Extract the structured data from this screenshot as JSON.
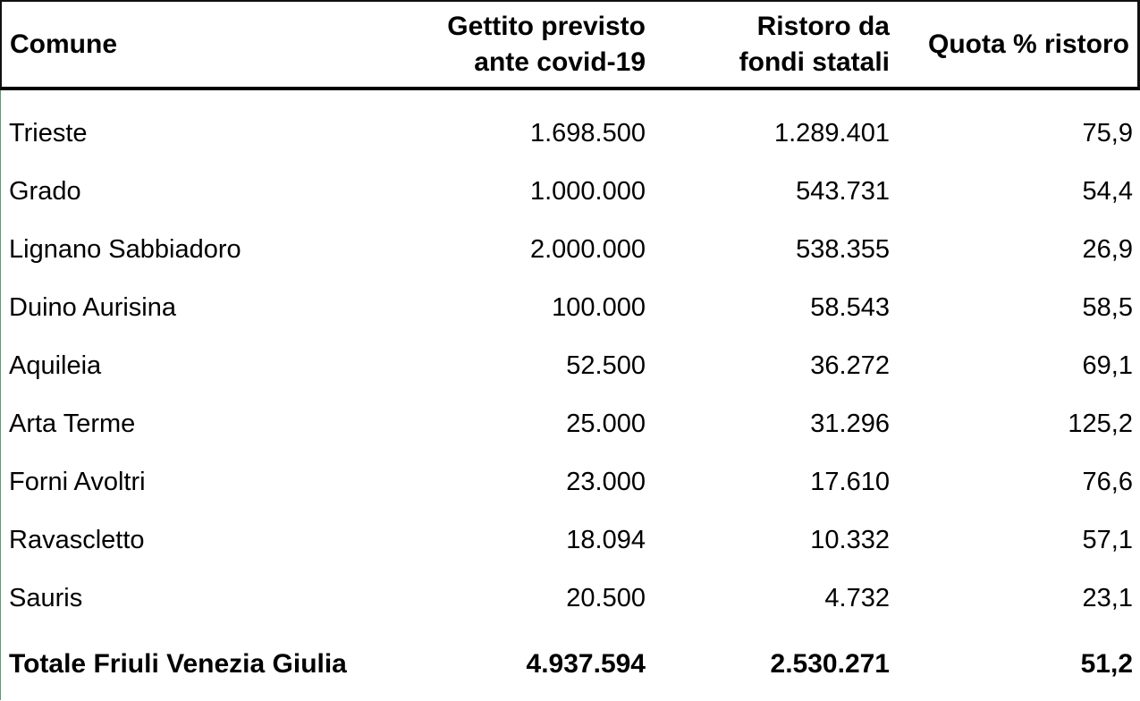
{
  "table": {
    "header": {
      "comune": "Comune",
      "gettito_line1": "Gettito previsto",
      "gettito_line2": "ante covid-19",
      "ristoro_line1": "Ristoro da",
      "ristoro_line2": "fondi statali",
      "quota": "Quota % ristoro"
    },
    "rows": [
      {
        "comune": "Trieste",
        "gettito": "1.698.500",
        "ristoro": "1.289.401",
        "quota": "75,9"
      },
      {
        "comune": "Grado",
        "gettito": "1.000.000",
        "ristoro": "543.731",
        "quota": "54,4"
      },
      {
        "comune": "Lignano Sabbiadoro",
        "gettito": "2.000.000",
        "ristoro": "538.355",
        "quota": "26,9"
      },
      {
        "comune": "Duino Aurisina",
        "gettito": "100.000",
        "ristoro": "58.543",
        "quota": "58,5"
      },
      {
        "comune": "Aquileia",
        "gettito": "52.500",
        "ristoro": "36.272",
        "quota": "69,1"
      },
      {
        "comune": "Arta Terme",
        "gettito": "25.000",
        "ristoro": "31.296",
        "quota": "125,2"
      },
      {
        "comune": "Forni Avoltri",
        "gettito": "23.000",
        "ristoro": "17.610",
        "quota": "76,6"
      },
      {
        "comune": "Ravascletto",
        "gettito": "18.094",
        "ristoro": "10.332",
        "quota": "57,1"
      },
      {
        "comune": "Sauris",
        "gettito": "20.500",
        "ristoro": "4.732",
        "quota": "23,1"
      }
    ],
    "total": {
      "comune": "Totale Friuli Venezia Giulia",
      "gettito": "4.937.594",
      "ristoro": "2.530.271",
      "quota": "51,2"
    }
  },
  "colors": {
    "background": "#ffffff",
    "text": "#000000",
    "frame_border": "#111111",
    "header_separator": "#000000",
    "left_edge_line": "#6e8f79"
  }
}
